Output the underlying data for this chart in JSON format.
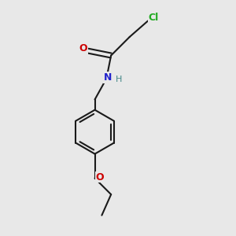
{
  "background_color": "#e8e8e8",
  "bond_color": "#1a1a1a",
  "atom_colors": {
    "Cl": "#22aa22",
    "O": "#cc0000",
    "N": "#2222cc",
    "H": "#448888",
    "C": "#1a1a1a"
  },
  "figsize": [
    3.0,
    3.0
  ],
  "dpi": 100,
  "bond_lw": 1.5
}
